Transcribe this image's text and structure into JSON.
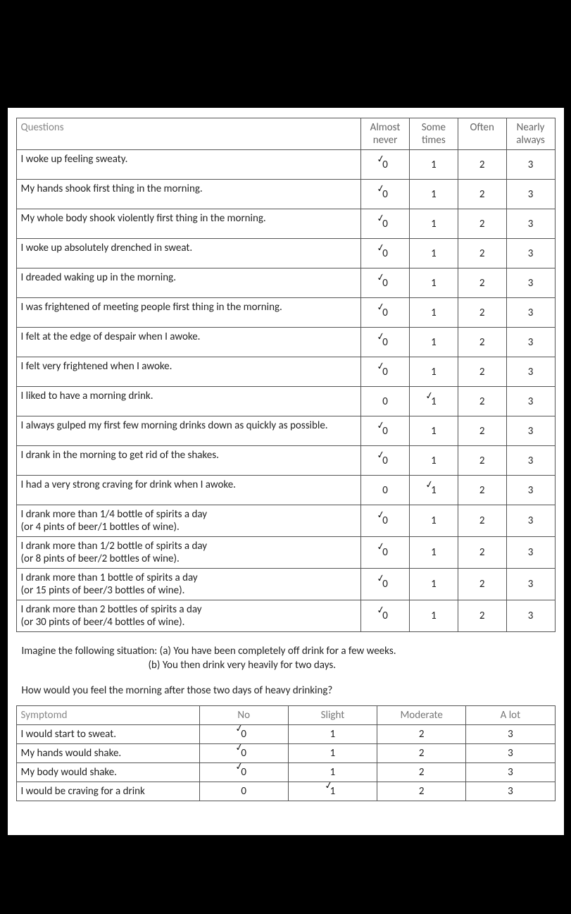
{
  "table1": {
    "header_q": "Questions",
    "headers": [
      "Almost never",
      "Some times",
      "Often",
      "Nearly always"
    ],
    "cells_default": [
      "0",
      "1",
      "2",
      "3"
    ],
    "rows": [
      {
        "q": "I woke up feeling sweaty.",
        "mark": 0
      },
      {
        "q": "My hands shook first thing in the morning.",
        "mark": 0
      },
      {
        "q": "My whole body shook violently first thing in the morning.",
        "mark": 0
      },
      {
        "q": "I woke up absolutely drenched in sweat.",
        "mark": 0
      },
      {
        "q": "I dreaded waking up in the morning.",
        "mark": 0
      },
      {
        "q": "I was frightened of meeting people first thing in the morning.",
        "mark": 0
      },
      {
        "q": "I felt at the edge of despair when I awoke.",
        "mark": 0
      },
      {
        "q": "I felt very frightened when I awoke.",
        "mark": 0
      },
      {
        "q": "I liked to have a morning drink.",
        "mark": 1
      },
      {
        "q": "I always gulped my first few morning drinks down as quickly as possible.",
        "mark": 0
      },
      {
        "q": "I drank in the morning to get rid of the shakes.",
        "mark": 0
      },
      {
        "q": "I had a very strong craving for drink when I awoke.",
        "mark": 1
      },
      {
        "q": "I drank more than 1/4 bottle of spirits a day\n(or 4 pints of beer/1 bottles of wine).",
        "mark": 0
      },
      {
        "q": "I drank more than 1/2 bottle of spirits a day\n(or 8 pints of beer/2 bottles of wine).",
        "mark": 0
      },
      {
        "q": "I drank more than 1 bottle of spirits a day\n(or 15 pints of beer/3 bottles of wine).",
        "mark": 0
      },
      {
        "q": "I drank more than 2 bottles of spirits a day\n(or 30 pints of beer/4 bottles of wine).",
        "mark": 0
      }
    ]
  },
  "instructions": {
    "line1": "Imagine the following situation:  (a) You have been completely off drink for a few weeks.",
    "line2": "(b) You then drink very heavily for two days.",
    "line3": "How would you feel the morning after those two days of heavy drinking?"
  },
  "table2": {
    "header_s": "Symptomd",
    "headers": [
      "No",
      "Slight",
      "Moderate",
      "A lot"
    ],
    "cells_default": [
      "0",
      "1",
      "2",
      "3"
    ],
    "rows": [
      {
        "s": "I would start to sweat.",
        "mark": 0
      },
      {
        "s": "My hands would shake.",
        "mark": 0
      },
      {
        "s": "My body would shake.",
        "mark": 0
      },
      {
        "s": "I would be craving for a drink",
        "mark": 1
      }
    ]
  }
}
